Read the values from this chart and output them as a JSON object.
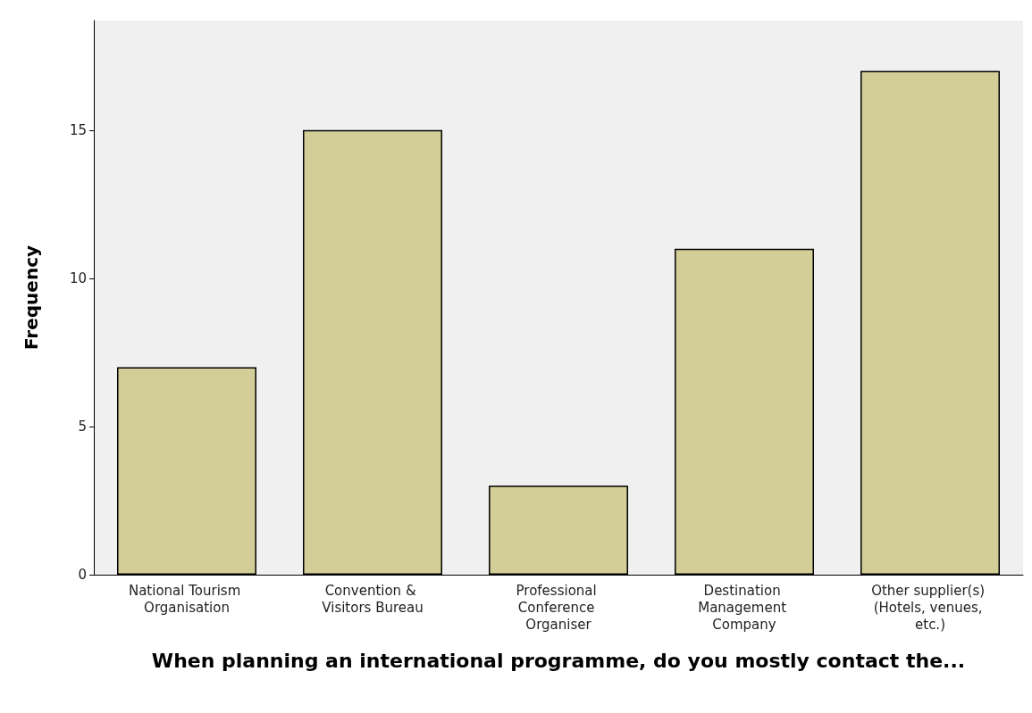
{
  "chart_data": {
    "type": "bar",
    "xlabel": "When planning an international programme, do you mostly contact the...",
    "ylabel": "Frequency",
    "categories": [
      "National Tourism Organisation",
      "Convention & Visitors Bureau",
      "Professional Conference Organiser",
      "Destination Management Company",
      "Other supplier(s) (Hotels, venues, etc.)"
    ],
    "values": [
      7,
      15,
      3,
      11,
      17
    ],
    "color": "#d3ce97",
    "ylim": [
      0,
      18.7
    ],
    "yticks": [
      0,
      5,
      10,
      15
    ],
    "grid": false
  }
}
